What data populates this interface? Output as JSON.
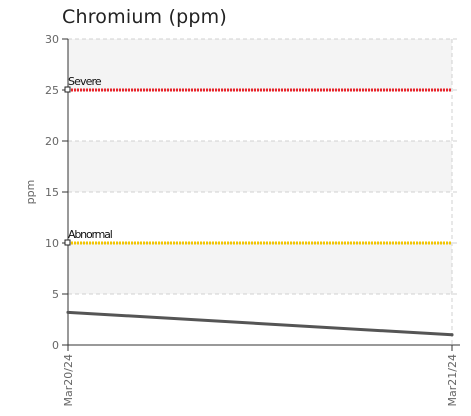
{
  "chart_data": {
    "type": "line",
    "title": "Chromium (ppm)",
    "xlabel": "",
    "ylabel": "ppm",
    "x": [
      "Mar20/24",
      "Mar21/24"
    ],
    "ylim": [
      0,
      30
    ],
    "yticks": [
      0,
      5,
      10,
      15,
      20,
      25,
      30
    ],
    "grid": true,
    "series": [
      {
        "values": [
          3.2,
          1.0
        ],
        "color": "#555555"
      }
    ],
    "thresholds": [
      {
        "label": "Severe",
        "value": 25,
        "color": "#e8232a"
      },
      {
        "label": "Abnormal",
        "value": 10,
        "color": "#f2c500"
      }
    ]
  }
}
